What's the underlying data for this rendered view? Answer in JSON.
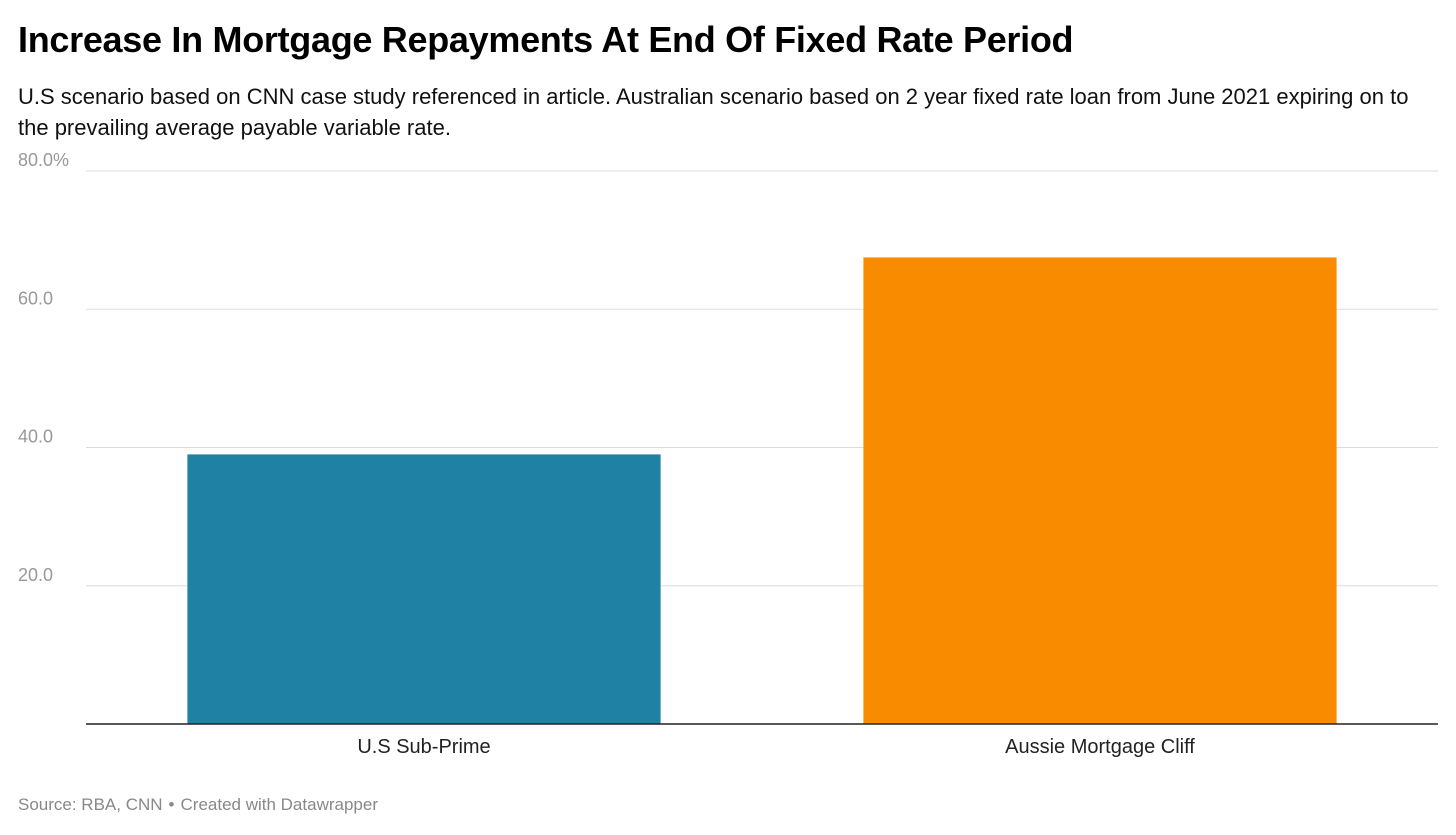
{
  "title": "Increase In Mortgage Repayments At End Of Fixed Rate Period",
  "subtitle": "U.S scenario based on CNN case study referenced in article. Australian scenario based on 2 year fixed rate loan from June 2021 expiring on to the prevailing average payable variable rate.",
  "footer": {
    "source": "Source: RBA, CNN",
    "separator": "•",
    "credit": "Created with Datawrapper"
  },
  "chart_data": {
    "type": "bar",
    "title": "Increase In Mortgage Repayments At End Of Fixed Rate Period",
    "subtitle": "U.S scenario based on CNN case study referenced in article. Australian scenario based on 2 year fixed rate loan from June 2021 expiring on to the prevailing average payable variable rate.",
    "xlabel": "",
    "ylabel": "",
    "categories": [
      "U.S Sub-Prime",
      "Aussie Mortgage Cliff"
    ],
    "values": [
      39,
      67.5
    ],
    "colors": [
      "#1f81a4",
      "#f98b00"
    ],
    "ylim": [
      0,
      80
    ],
    "yticks": [
      20,
      40,
      60,
      80
    ],
    "ytick_labels": [
      "20.0",
      "40.0",
      "60.0",
      "80.0%"
    ],
    "grid": true,
    "legend": "none"
  }
}
